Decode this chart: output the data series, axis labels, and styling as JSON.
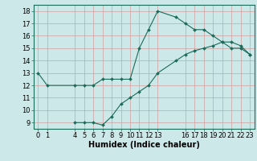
{
  "xlabel": "Humidex (Indice chaleur)",
  "bg_color": "#cce8e8",
  "grid_color": "#d4a0a0",
  "line_color": "#1a6b5a",
  "upper_x": [
    0,
    1,
    4,
    5,
    6,
    7,
    8,
    9,
    10,
    11,
    12,
    13,
    15,
    16,
    17,
    18,
    19,
    20,
    21,
    22,
    23
  ],
  "upper_y": [
    13,
    12,
    12,
    12,
    12,
    12.5,
    12.5,
    12.5,
    12.5,
    15,
    16.5,
    18,
    17.5,
    17,
    16.5,
    16.5,
    16,
    15.5,
    15,
    15,
    14.5
  ],
  "lower_x": [
    4,
    5,
    6,
    7,
    8,
    9,
    10,
    11,
    12,
    13,
    15,
    16,
    17,
    18,
    19,
    20,
    21,
    22,
    23
  ],
  "lower_y": [
    9,
    9,
    9,
    8.8,
    9.5,
    10.5,
    11,
    11.5,
    12,
    13,
    14,
    14.5,
    14.8,
    15,
    15.2,
    15.5,
    15.5,
    15.2,
    14.5
  ],
  "xlim": [
    -0.5,
    23.5
  ],
  "ylim": [
    8.5,
    18.5
  ],
  "xticks": [
    0,
    1,
    4,
    5,
    6,
    7,
    8,
    9,
    10,
    11,
    12,
    13,
    16,
    17,
    18,
    19,
    20,
    21,
    22,
    23
  ],
  "yticks": [
    9,
    10,
    11,
    12,
    13,
    14,
    15,
    16,
    17,
    18
  ],
  "xlabel_fontsize": 7,
  "tick_fontsize": 6,
  "markersize": 2.0,
  "linewidth": 0.8
}
